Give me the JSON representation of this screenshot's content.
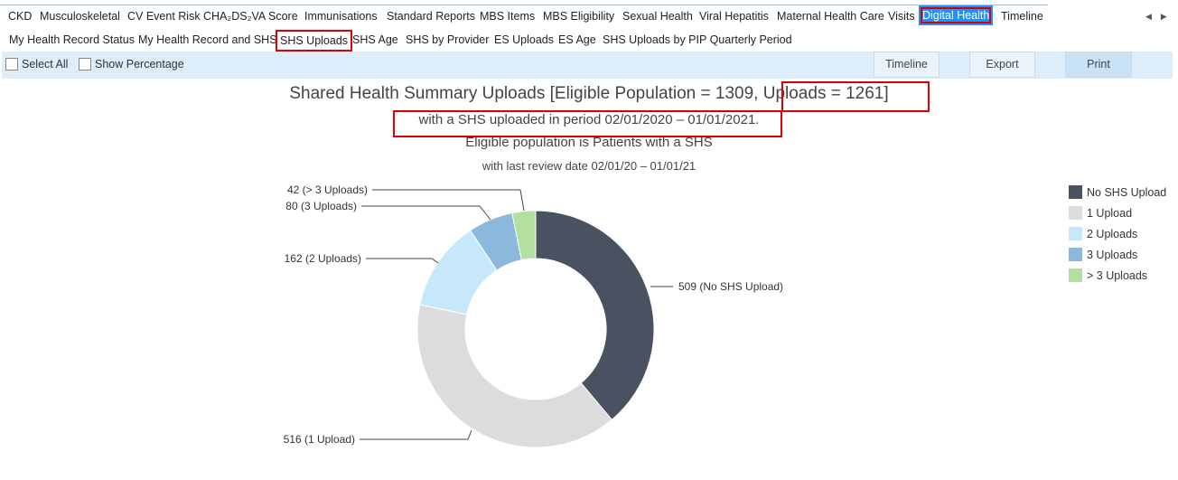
{
  "top_tabs": [
    "CKD",
    "Musculoskeletal",
    "CV Event Risk",
    "CHA₂DS₂VA Score",
    "Immunisations",
    "Standard Reports",
    "MBS Items",
    "MBS Eligibility",
    "Sexual Health",
    "Viral Hepatitis",
    "Maternal Health Care",
    "Visits",
    "Digital Health",
    "Timeline"
  ],
  "active_top_tab": "Digital Health",
  "sub_tabs": [
    "My Health Record Status",
    "My Health Record and SHS",
    "SHS Uploads",
    "SHS Age",
    "SHS by Provider",
    "ES Uploads",
    "ES Age",
    "SHS Uploads by PIP Quarterly Period"
  ],
  "active_sub_tab": "SHS Uploads",
  "toolbar": {
    "select_all": "Select All",
    "show_percentage": "Show Percentage",
    "timeline": "Timeline",
    "export": "Export",
    "print": "Print"
  },
  "report": {
    "title_part1": "Shared Health Summary Uploads [Eligible Population = 1309, ",
    "title_part2": "Uploads = 1261]",
    "subtitle": "with a SHS uploaded in period 02/01/2020 – 01/01/2021.",
    "eligible_note": "Eligible population is Patients with a SHS",
    "review_note": "with last review date 02/01/20 – 01/01/21"
  },
  "chart_data": {
    "type": "pie",
    "donut": true,
    "categories": [
      "No SHS Upload",
      "1 Upload",
      "2 Uploads",
      "3 Uploads",
      "> 3 Uploads"
    ],
    "values": [
      509,
      516,
      162,
      80,
      42
    ],
    "data_labels": [
      "509 (No SHS Upload)",
      "516 (1 Upload)",
      "162 (2 Uploads)",
      "80 (3 Uploads)",
      "42 (> 3 Uploads)"
    ],
    "colors": [
      "#4a5262",
      "#dcdcdc",
      "#c7e7fb",
      "#8cb8dc",
      "#b3e0a0"
    ],
    "legend_position": "right"
  }
}
